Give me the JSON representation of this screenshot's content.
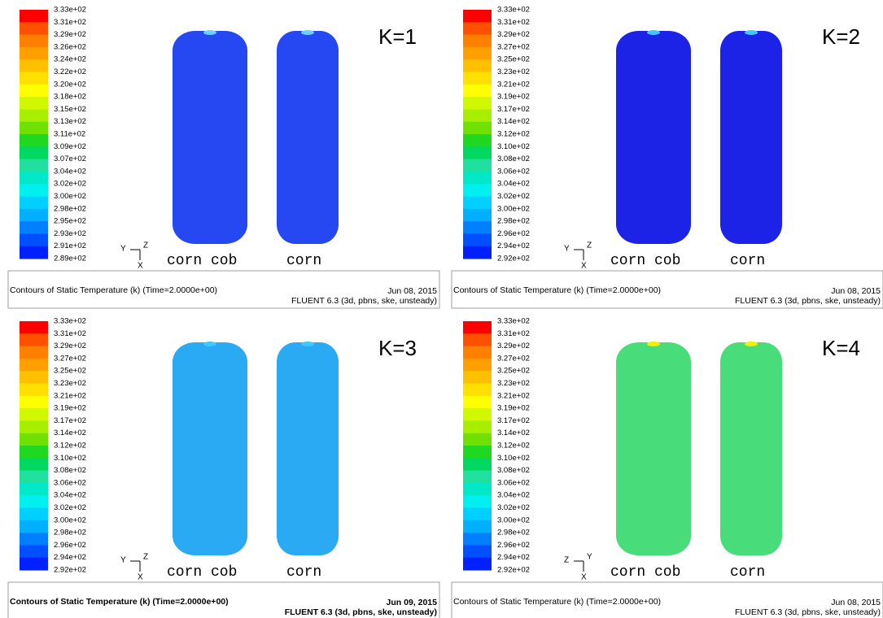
{
  "panels": [
    {
      "k_label": "K=1",
      "levels": [
        "3.33e+02",
        "3.31e+02",
        "3.29e+02",
        "3.26e+02",
        "3.24e+02",
        "3.22e+02",
        "3.20e+02",
        "3.18e+02",
        "3.15e+02",
        "3.13e+02",
        "3.11e+02",
        "3.09e+02",
        "3.07e+02",
        "3.04e+02",
        "3.02e+02",
        "3.00e+02",
        "2.98e+02",
        "2.95e+02",
        "2.93e+02",
        "2.91e+02",
        "2.89e+02"
      ],
      "axes": [
        "Y",
        "Z",
        "X"
      ],
      "labels": [
        "corn cob",
        "corn"
      ],
      "caption": "Contours of Static Temperature (k)  (Time=2.0000e+00)",
      "date": "Jun 08, 2015",
      "solver": "FLUENT 6.3 (3d, pbns, ske, unsteady)"
    },
    {
      "k_label": "K=2",
      "levels": [
        "3.33e+02",
        "3.31e+02",
        "3.29e+02",
        "3.27e+02",
        "3.25e+02",
        "3.23e+02",
        "3.21e+02",
        "3.19e+02",
        "3.17e+02",
        "3.14e+02",
        "3.12e+02",
        "3.10e+02",
        "3.08e+02",
        "3.06e+02",
        "3.04e+02",
        "3.02e+02",
        "3.00e+02",
        "2.98e+02",
        "2.96e+02",
        "2.94e+02",
        "2.92e+02"
      ],
      "axes": [
        "Y",
        "Z",
        "X"
      ],
      "labels": [
        "corn cob",
        "corn"
      ],
      "caption": "Contours of Static Temperature (k)  (Time=2.0000e+00)",
      "date": "Jun 08, 2015",
      "solver": "FLUENT 6.3 (3d, pbns, ske, unsteady)"
    },
    {
      "k_label": "K=3",
      "levels": [
        "3.33e+02",
        "3.31e+02",
        "3.29e+02",
        "3.27e+02",
        "3.25e+02",
        "3.23e+02",
        "3.21e+02",
        "3.19e+02",
        "3.17e+02",
        "3.14e+02",
        "3.12e+02",
        "3.10e+02",
        "3.08e+02",
        "3.06e+02",
        "3.04e+02",
        "3.02e+02",
        "3.00e+02",
        "2.98e+02",
        "2.96e+02",
        "2.94e+02",
        "2.92e+02"
      ],
      "axes": [
        "Y",
        "Z",
        "X"
      ],
      "labels": [
        "corn cob",
        "corn"
      ],
      "caption": "Contours of Static Temperature (k)  (Time=2.0000e+00)",
      "date": "Jun 09, 2015",
      "solver": "FLUENT 6.3 (3d, pbns, ske, unsteady)"
    },
    {
      "k_label": "K=4",
      "levels": [
        "3.33e+02",
        "3.31e+02",
        "3.29e+02",
        "3.27e+02",
        "3.25e+02",
        "3.23e+02",
        "3.21e+02",
        "3.19e+02",
        "3.17e+02",
        "3.14e+02",
        "3.12e+02",
        "3.10e+02",
        "3.08e+02",
        "3.06e+02",
        "3.04e+02",
        "3.02e+02",
        "3.00e+02",
        "2.98e+02",
        "2.96e+02",
        "2.94e+02",
        "2.92e+02"
      ],
      "axes": [
        "Z",
        "Y",
        "X"
      ],
      "labels": [
        "corn cob",
        "corn"
      ],
      "caption": "Contours of Static Temperature (k)  (Time=2.0000e+00)",
      "date": "Jun 08, 2015",
      "solver": "FLUENT 6.3 (3d, pbns, ske, unsteady)"
    }
  ]
}
